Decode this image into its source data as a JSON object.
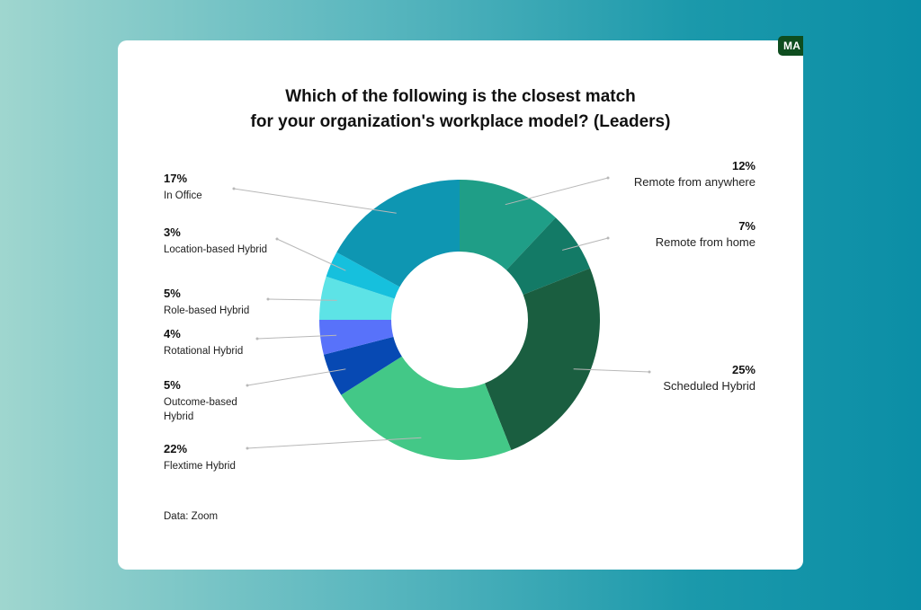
{
  "badge": "MA",
  "title_line1": "Which of the following is the closest match",
  "title_line2": "for your organization's workplace model? (Leaders)",
  "source": "Data: Zoom",
  "chart_data": {
    "type": "pie",
    "donut": true,
    "title": "Which of the following is the closest match for your organization's workplace model? (Leaders)",
    "slices": [
      {
        "name": "Remote from anywhere",
        "value": 12,
        "label": "12%",
        "color": "#1f9e87"
      },
      {
        "name": "Remote from home",
        "value": 7,
        "label": "7%",
        "color": "#137a66"
      },
      {
        "name": "Scheduled Hybrid",
        "value": 25,
        "label": "25%",
        "color": "#1a5e40"
      },
      {
        "name": "Flextime Hybrid",
        "value": 22,
        "label": "22%",
        "color": "#43c887"
      },
      {
        "name": "Outcome-based Hybrid",
        "value": 5,
        "label": "5%",
        "color": "#0749b3"
      },
      {
        "name": "Rotational Hybrid",
        "value": 4,
        "label": "4%",
        "color": "#5872fa"
      },
      {
        "name": "Role-based Hybrid",
        "value": 5,
        "label": "5%",
        "color": "#5de3e6"
      },
      {
        "name": "Location-based Hybrid",
        "value": 3,
        "label": "3%",
        "color": "#16c0dd"
      },
      {
        "name": "In Office",
        "value": 17,
        "label": "17%",
        "color": "#0e96b2"
      }
    ]
  }
}
